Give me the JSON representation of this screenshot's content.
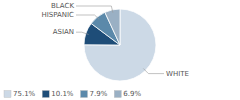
{
  "chart_data": {
    "type": "pie",
    "categories": [
      "WHITE",
      "ASIAN",
      "HISPANIC",
      "BLACK"
    ],
    "values": [
      75.1,
      10.1,
      7.9,
      6.9
    ],
    "value_labels": [
      "75.1%",
      "10.1%",
      "7.9%",
      "6.9%"
    ],
    "colors": [
      "#ccd9e6",
      "#1e4d78",
      "#5b89aa",
      "#9ab0c4"
    ],
    "legend": "bottom-left"
  }
}
